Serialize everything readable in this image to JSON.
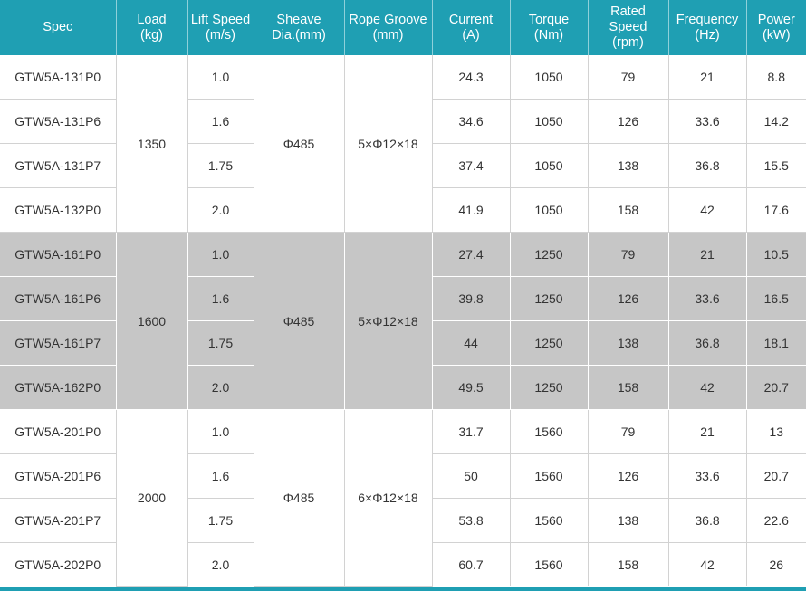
{
  "headers": [
    {
      "line1": "Spec",
      "line2": ""
    },
    {
      "line1": "Load",
      "line2": "(kg)"
    },
    {
      "line1": "Lift Speed",
      "line2": "(m/s)"
    },
    {
      "line1": "Sheave",
      "line2": "Dia.(mm)"
    },
    {
      "line1": "Rope Groove",
      "line2": "(mm)"
    },
    {
      "line1": "Current",
      "line2": "(A)"
    },
    {
      "line1": "Torque",
      "line2": "(Nm)"
    },
    {
      "line1": "Rated Speed",
      "line2": "(rpm)"
    },
    {
      "line1": "Frequency",
      "line2": "(Hz)"
    },
    {
      "line1": "Power",
      "line2": "(kW)"
    }
  ],
  "groups": [
    {
      "load": "1350",
      "sheave": "Φ485",
      "groove": "5×Φ12×18",
      "rows": [
        {
          "spec": "GTW5A-131P0",
          "speed": "1.0",
          "current": "24.3",
          "torque": "1050",
          "rpm": "79",
          "freq": "21",
          "power": "8.8"
        },
        {
          "spec": "GTW5A-131P6",
          "speed": "1.6",
          "current": "34.6",
          "torque": "1050",
          "rpm": "126",
          "freq": "33.6",
          "power": "14.2"
        },
        {
          "spec": "GTW5A-131P7",
          "speed": "1.75",
          "current": "37.4",
          "torque": "1050",
          "rpm": "138",
          "freq": "36.8",
          "power": "15.5"
        },
        {
          "spec": "GTW5A-132P0",
          "speed": "2.0",
          "current": "41.9",
          "torque": "1050",
          "rpm": "158",
          "freq": "42",
          "power": "17.6"
        }
      ]
    },
    {
      "load": "1600",
      "sheave": "Φ485",
      "groove": "5×Φ12×18",
      "rows": [
        {
          "spec": "GTW5A-161P0",
          "speed": "1.0",
          "current": "27.4",
          "torque": "1250",
          "rpm": "79",
          "freq": "21",
          "power": "10.5"
        },
        {
          "spec": "GTW5A-161P6",
          "speed": "1.6",
          "current": "39.8",
          "torque": "1250",
          "rpm": "126",
          "freq": "33.6",
          "power": "16.5"
        },
        {
          "spec": "GTW5A-161P7",
          "speed": "1.75",
          "current": "44",
          "torque": "1250",
          "rpm": "138",
          "freq": "36.8",
          "power": "18.1"
        },
        {
          "spec": "GTW5A-162P0",
          "speed": "2.0",
          "current": "49.5",
          "torque": "1250",
          "rpm": "158",
          "freq": "42",
          "power": "20.7"
        }
      ]
    },
    {
      "load": "2000",
      "sheave": "Φ485",
      "groove": "6×Φ12×18",
      "rows": [
        {
          "spec": "GTW5A-201P0",
          "speed": "1.0",
          "current": "31.7",
          "torque": "1560",
          "rpm": "79",
          "freq": "21",
          "power": "13"
        },
        {
          "spec": "GTW5A-201P6",
          "speed": "1.6",
          "current": "50",
          "torque": "1560",
          "rpm": "126",
          "freq": "33.6",
          "power": "20.7"
        },
        {
          "spec": "GTW5A-201P7",
          "speed": "1.75",
          "current": "53.8",
          "torque": "1560",
          "rpm": "138",
          "freq": "36.8",
          "power": "22.6"
        },
        {
          "spec": "GTW5A-202P0",
          "speed": "2.0",
          "current": "60.7",
          "torque": "1560",
          "rpm": "158",
          "freq": "42",
          "power": "26"
        }
      ]
    }
  ],
  "colors": {
    "header_bg": "#1f9fb3",
    "gray_group": "#c6c6c6",
    "text": "#333333"
  }
}
